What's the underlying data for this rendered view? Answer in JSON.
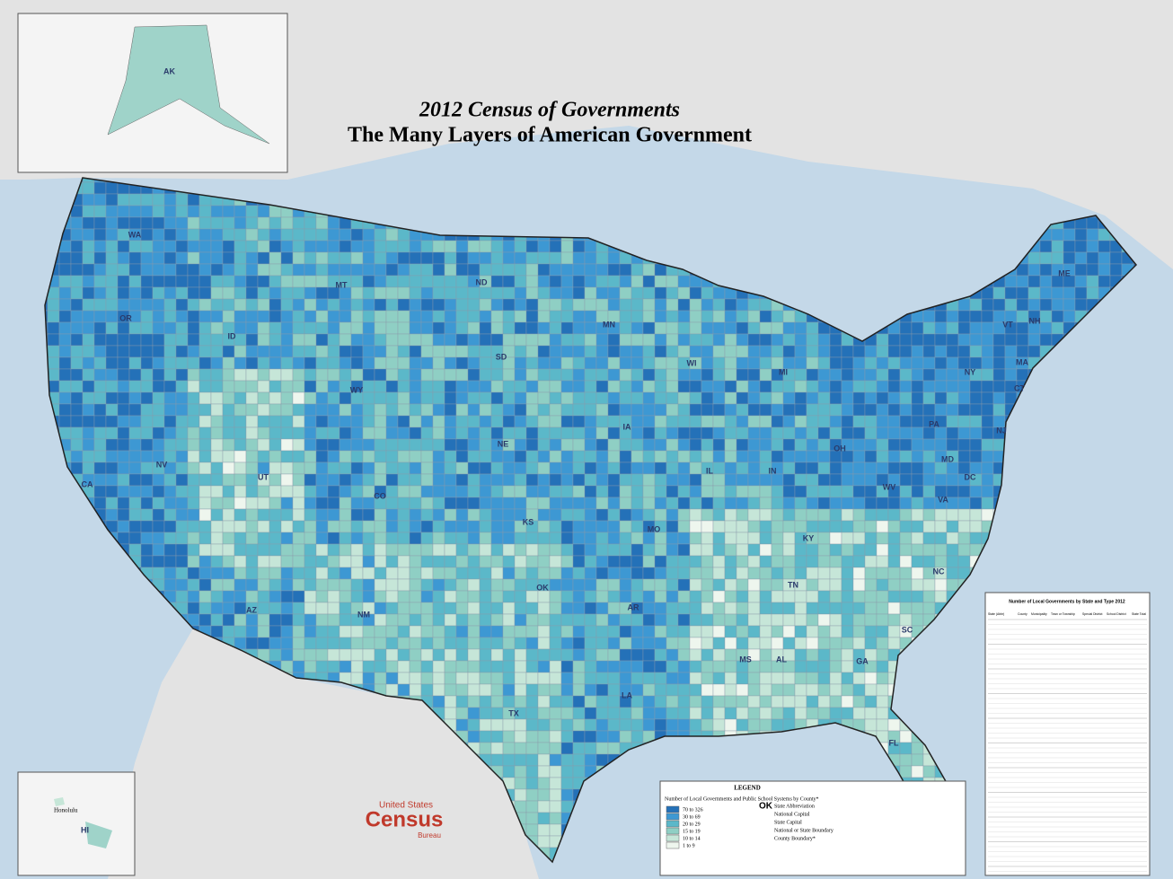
{
  "header": {
    "title": "2012 Census of Governments",
    "subtitle": "The Many Layers of American Government"
  },
  "insets": {
    "alaska": "AK",
    "hawaii": "HI",
    "honolulu": "Honolulu"
  },
  "states": [
    "WA",
    "OR",
    "CA",
    "NV",
    "ID",
    "MT",
    "WY",
    "UT",
    "AZ",
    "NM",
    "CO",
    "ND",
    "SD",
    "NE",
    "KS",
    "OK",
    "TX",
    "MN",
    "IA",
    "MO",
    "AR",
    "LA",
    "WI",
    "IL",
    "MI",
    "IN",
    "OH",
    "KY",
    "TN",
    "MS",
    "AL",
    "GA",
    "FL",
    "SC",
    "NC",
    "VA",
    "WV",
    "PA",
    "NY",
    "ME",
    "NH",
    "VT",
    "MA",
    "CT",
    "NJ",
    "MD",
    "DC"
  ],
  "legend": {
    "title": "LEGEND",
    "heading": "Number of Local Governments and Public School Systems by County*",
    "classes": [
      {
        "label": "70 to 326",
        "color": "#2471b8"
      },
      {
        "label": "30 to 69",
        "color": "#3d98d3"
      },
      {
        "label": "20 to 29",
        "color": "#5bb8c9"
      },
      {
        "label": "15 to 19",
        "color": "#8fcfc4"
      },
      {
        "label": "10 to 14",
        "color": "#c6e6d8"
      },
      {
        "label": "1 to 9",
        "color": "#eef6ee"
      }
    ],
    "symbols": [
      "State Abbreviation",
      "National Capital",
      "State Capital",
      "National or State Boundary",
      "County Boundary*"
    ],
    "abbr_sample": "OK"
  },
  "logo": {
    "line1": "United States",
    "line2": "Census",
    "line3": "Bureau"
  },
  "table": {
    "title": "Number of Local Governments by State and Type 2012",
    "columns": [
      "State (Abbr)",
      "County",
      "Municipality",
      "Town or Township",
      "Special District",
      "School District",
      "State Total"
    ]
  }
}
